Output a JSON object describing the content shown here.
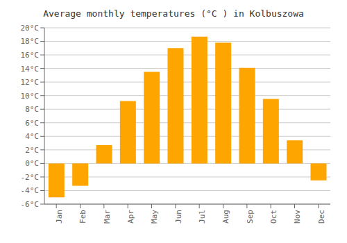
{
  "chart_data": {
    "type": "bar",
    "title": "Average monthly temperatures (°C ) in Kolbuszowa",
    "categories": [
      "Jan",
      "Feb",
      "Mar",
      "Apr",
      "May",
      "Jun",
      "Jul",
      "Aug",
      "Sep",
      "Oct",
      "Nov",
      "Dec"
    ],
    "values": [
      -5.0,
      -3.3,
      2.7,
      9.2,
      13.5,
      17.0,
      18.7,
      17.8,
      14.1,
      9.5,
      3.4,
      -2.5
    ],
    "color": "#FFA500",
    "ylim": [
      -6,
      20
    ],
    "yticks": [
      {
        "value": -6,
        "label": "-6°C"
      },
      {
        "value": -4,
        "label": "-4°C"
      },
      {
        "value": -2,
        "label": "-2°C"
      },
      {
        "value": 0,
        "label": "0°C"
      },
      {
        "value": 2,
        "label": "2°C"
      },
      {
        "value": 4,
        "label": "4°C"
      },
      {
        "value": 6,
        "label": "6°C"
      },
      {
        "value": 8,
        "label": "8°C"
      },
      {
        "value": 10,
        "label": "10°C"
      },
      {
        "value": 12,
        "label": "12°C"
      },
      {
        "value": 14,
        "label": "14°C"
      },
      {
        "value": 16,
        "label": "16°C"
      },
      {
        "value": 18,
        "label": "18°C"
      },
      {
        "value": 20,
        "label": "20°C"
      }
    ],
    "grid": true
  }
}
